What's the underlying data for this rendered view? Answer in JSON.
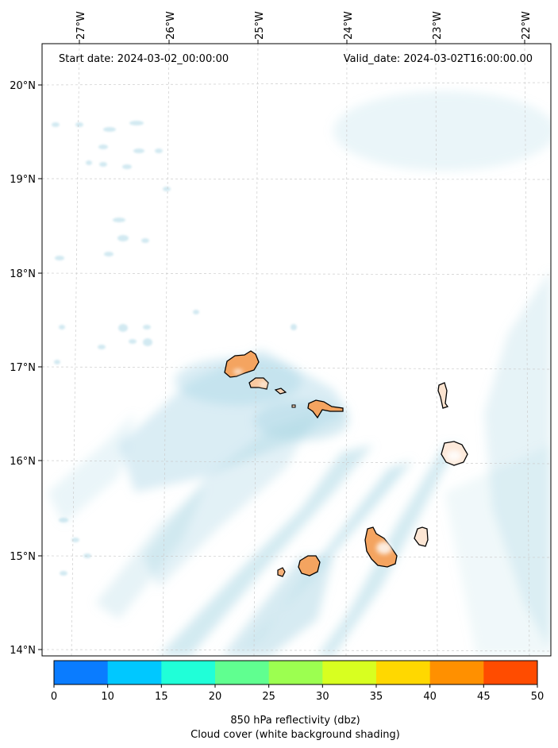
{
  "map": {
    "start_date": "Start date: 2024-03-02_00:00:00",
    "valid_date": "Valid_date: 2024-03-02T16:00:00.00",
    "lon_labels": [
      "27°W",
      "26°W",
      "25°W",
      "24°W",
      "23°W",
      "22°W"
    ],
    "lat_labels": [
      "20°N",
      "19°N",
      "18°N",
      "17°N",
      "16°N",
      "15°N",
      "14°N"
    ],
    "grid": true,
    "cloud_color": "#add8e6",
    "land_color": "#f4a460",
    "coast_color": "#000000"
  },
  "colorbar": {
    "ticks": [
      "0",
      "10",
      "15",
      "20",
      "25",
      "30",
      "35",
      "40",
      "45",
      "50"
    ],
    "colors": [
      "#0a7cff",
      "#00c8ff",
      "#20ffd8",
      "#60ff90",
      "#9cff50",
      "#d8ff20",
      "#ffd800",
      "#ff9000",
      "#ff4c00"
    ],
    "label_line1": "850 hPa reflectivity (dbz)",
    "label_line2": "Cloud cover (white background shading)"
  }
}
